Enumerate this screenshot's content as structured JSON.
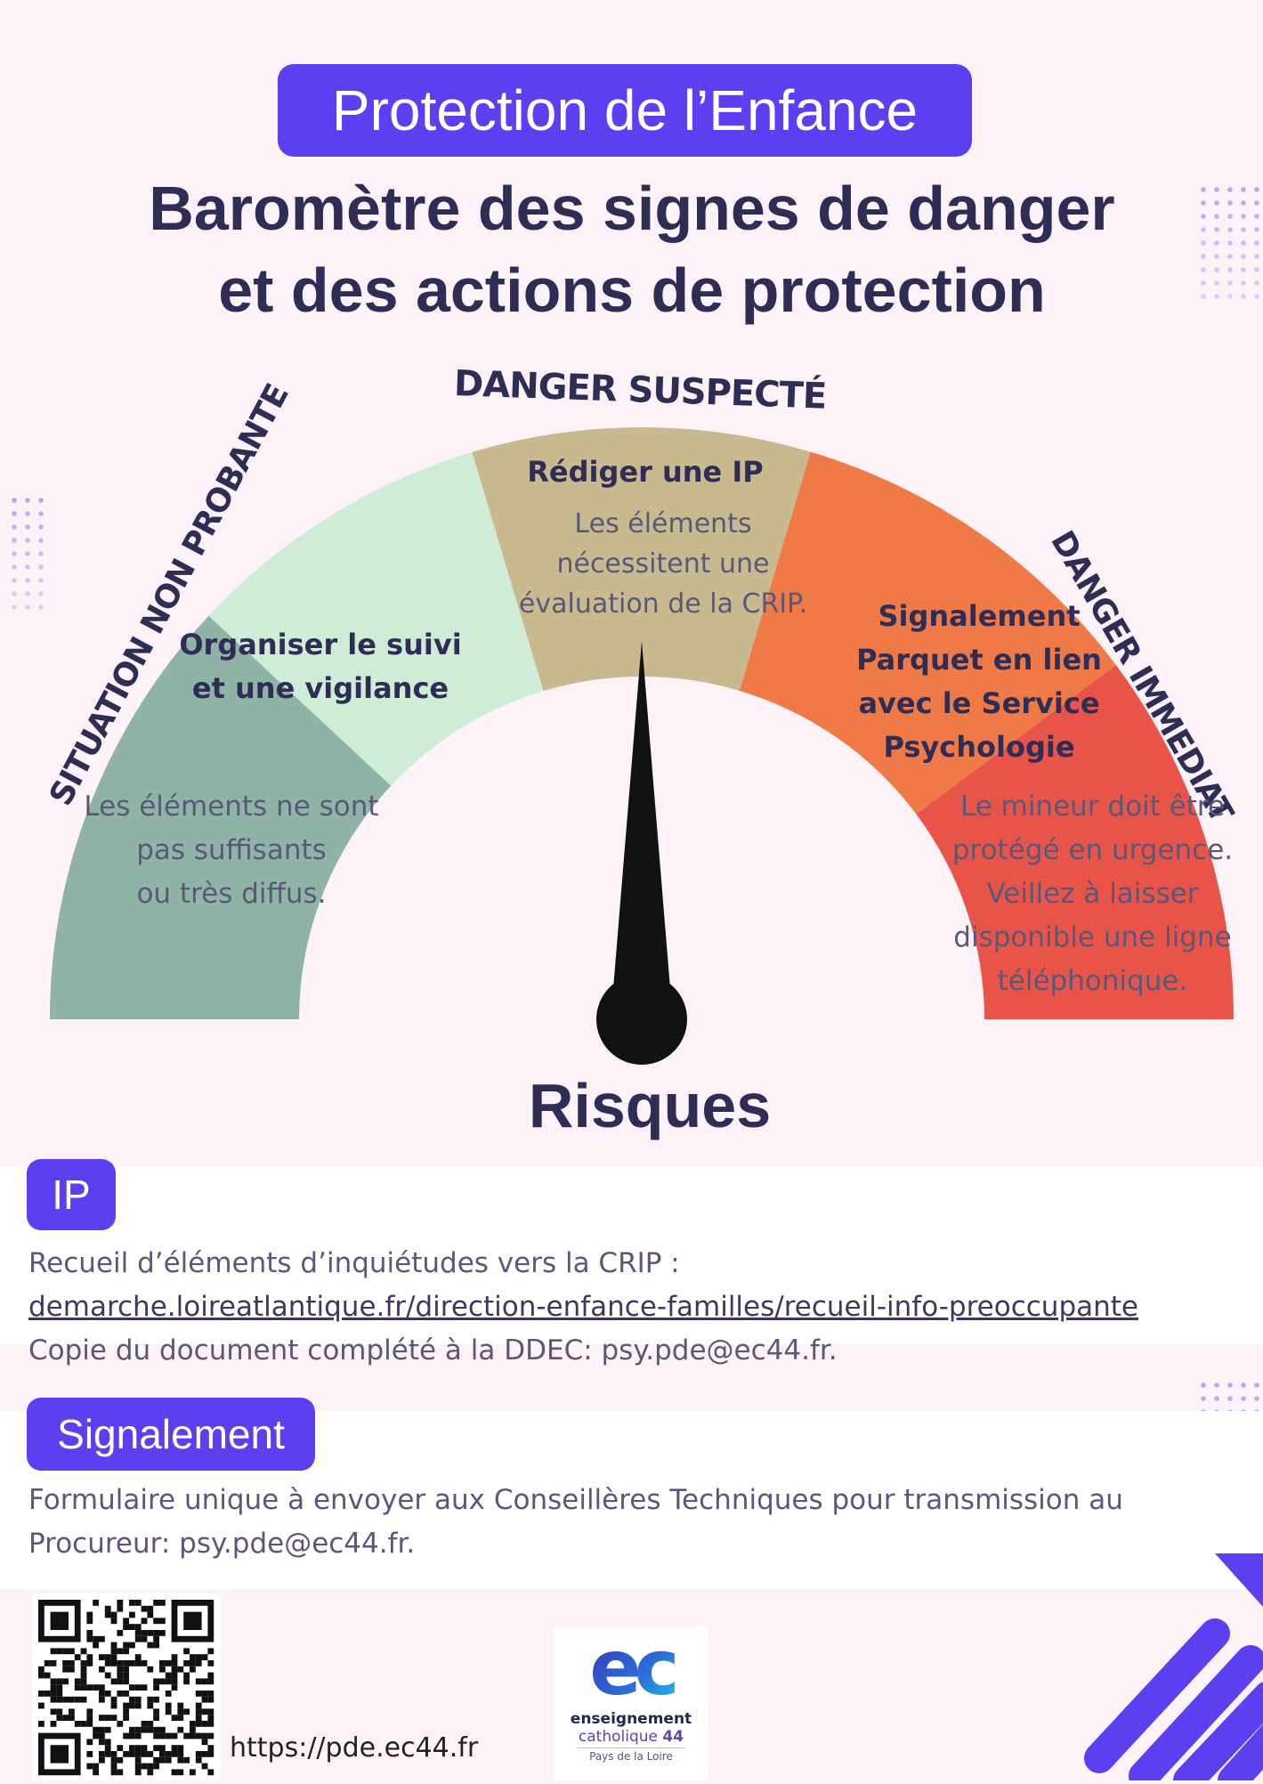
{
  "header": {
    "pill_title": "Protection de l’Enfance",
    "title_line1": "Baromètre des signes de danger",
    "title_line2": "et des actions de protection"
  },
  "gauge": {
    "labels": {
      "left": "SITUATION NON PROBANTE",
      "top": "DANGER SUSPECTÉ",
      "right": "DANGER IMMEDIAT"
    },
    "segments": [
      {
        "color": "#8fb3a6"
      },
      {
        "color": "#cfecd6"
      },
      {
        "color": "#c9b98e"
      },
      {
        "color": "#ef7a48"
      },
      {
        "color": "#e85448"
      }
    ],
    "zones": {
      "non_probante": {
        "action": "",
        "text_lines": [
          "Les éléments ne sont",
          "pas suffisants",
          "ou très diffus."
        ]
      },
      "vigilance": {
        "action_lines": [
          "Organiser le suivi",
          "et une vigilance"
        ]
      },
      "suspecte": {
        "action": "Rédiger une IP",
        "text_lines": [
          "Les éléments",
          "nécessitent une",
          "évaluation de la CRIP."
        ]
      },
      "signalement": {
        "action_lines": [
          "Signalement",
          "Parquet en lien",
          "avec le Service",
          "Psychologie"
        ]
      },
      "immediat": {
        "text_lines": [
          "Le mineur doit être",
          "protégé en urgence.",
          "Veillez à laisser",
          "disponible une ligne",
          "téléphonique."
        ]
      }
    },
    "needle_value": 0.5,
    "caption": "Risques"
  },
  "ip_section": {
    "badge": "IP",
    "line1": "Recueil d’éléments d’inquiétudes vers la CRIP :",
    "link": "demarche.loireatlantique.fr/direction-enfance-familles/recueil-info-preoccupante",
    "line3": "Copie du document complété à la DDEC: psy.pde@ec44.fr."
  },
  "signalement_section": {
    "badge": "Signalement",
    "line1": "Formulaire unique à envoyer aux Conseillères Techniques pour transmission au",
    "line2": "Procureur: psy.pde@ec44.fr."
  },
  "footer": {
    "url": "https://pde.ec44.fr",
    "logo": {
      "mark": "ec",
      "line1": "enseignement",
      "line2": "catholique",
      "line2_num": "44",
      "line3": "Pays de la Loire"
    }
  },
  "colors": {
    "accent": "#5b3ff0",
    "navy": "#2f2d56",
    "background": "#fdf2f7"
  }
}
